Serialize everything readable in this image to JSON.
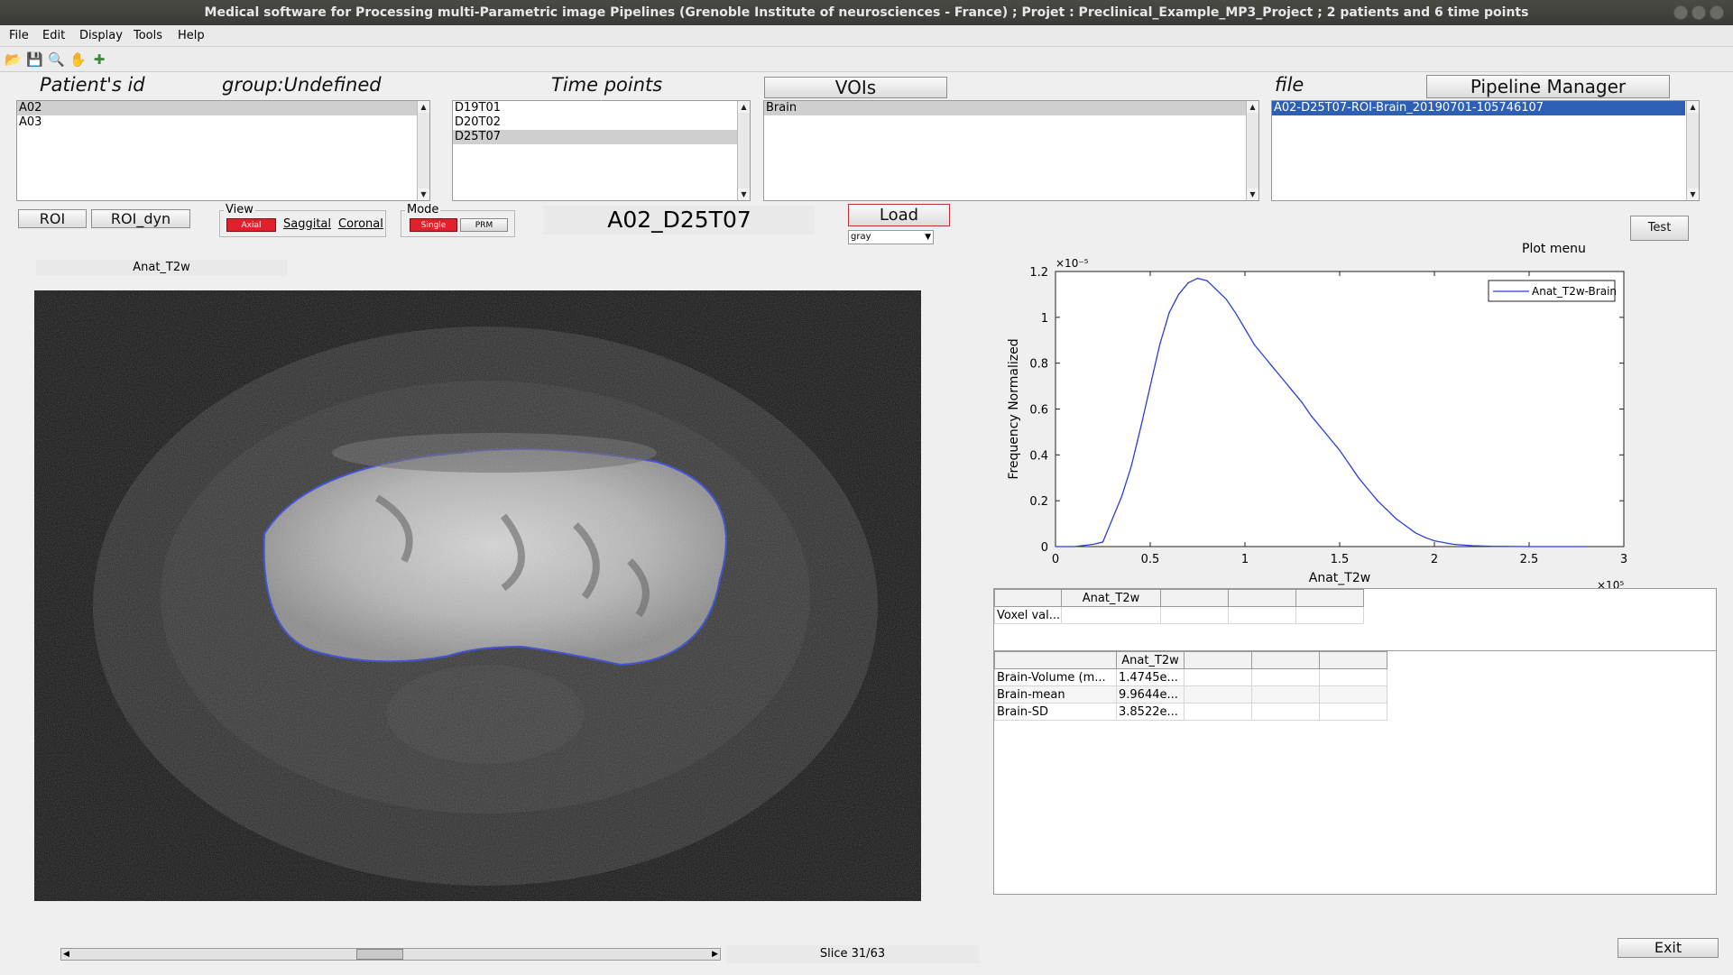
{
  "window": {
    "title": "Medical software for Processing multi-Parametric image Pipelines (Grenoble Institute of neurosciences - France) ; Projet : Preclinical_Example_MP3_Project ; 2 patients and 6 time points"
  },
  "menu": [
    "File",
    "Edit",
    "Display",
    "Tools",
    "Help"
  ],
  "toolbar_icons": [
    "open-folder-icon",
    "save-icon",
    "zoom-icon",
    "pan-hand-icon",
    "data-cursor-icon"
  ],
  "patients": {
    "header": "Patient's id",
    "group": "group:Undefined",
    "items": [
      "A02",
      "A03"
    ],
    "selected": 0
  },
  "timepoints": {
    "header": "Time points",
    "items": [
      "D19T01",
      "D20T02",
      "D25T07"
    ],
    "selected": 2
  },
  "vois": {
    "header": "VOIs",
    "items": [
      "Brain"
    ],
    "selected": 0
  },
  "file": {
    "header": "file",
    "items": [
      "A02-D25T07-ROI-Brain_20190701-105746107"
    ],
    "selected": 0
  },
  "buttons": {
    "pipeline": "Pipeline Manager",
    "roi": "ROI",
    "roi_dyn": "ROI_dyn",
    "load": "Load",
    "test": "Test",
    "exit": "Exit"
  },
  "view": {
    "label": "View",
    "axial": "Axial",
    "saggital": "Saggital",
    "coronal": "Coronal"
  },
  "mode": {
    "label": "Mode",
    "single": "Single",
    "prm": "PRM"
  },
  "current_id": "A02_D25T07",
  "colormap": "gray",
  "image_title": "Anat_T2w",
  "slice": {
    "text": "Slice 31/63",
    "current": 31,
    "total": 63
  },
  "plot_menu": "Plot menu",
  "chart_data": {
    "type": "line",
    "xlabel": "Anat_T2w",
    "ylabel": "Frequency Normalized",
    "x_exponent": "×10⁵",
    "y_exponent": "×10⁻⁵",
    "xlim": [
      0,
      3
    ],
    "ylim": [
      0,
      1.2
    ],
    "x_ticks": [
      "0",
      "0.5",
      "1",
      "1.5",
      "2",
      "2.5",
      "3"
    ],
    "y_ticks": [
      "0",
      "0.2",
      "0.4",
      "0.6",
      "0.8",
      "1",
      "1.2"
    ],
    "legend_position": "top-right",
    "color": "#2b3fd6",
    "series": [
      {
        "name": "Anat_T2w-Brain",
        "x": [
          0.0,
          0.1,
          0.2,
          0.25,
          0.3,
          0.35,
          0.4,
          0.45,
          0.5,
          0.55,
          0.6,
          0.65,
          0.7,
          0.75,
          0.8,
          0.85,
          0.9,
          0.95,
          1.0,
          1.05,
          1.1,
          1.15,
          1.2,
          1.25,
          1.3,
          1.35,
          1.4,
          1.45,
          1.5,
          1.55,
          1.6,
          1.65,
          1.7,
          1.75,
          1.8,
          1.85,
          1.9,
          1.95,
          2.0,
          2.1,
          2.2,
          2.3,
          2.5,
          2.8
        ],
        "y": [
          0.0,
          0.0,
          0.01,
          0.02,
          0.12,
          0.22,
          0.35,
          0.52,
          0.7,
          0.88,
          1.02,
          1.1,
          1.15,
          1.17,
          1.16,
          1.12,
          1.08,
          1.02,
          0.95,
          0.88,
          0.83,
          0.78,
          0.73,
          0.68,
          0.63,
          0.57,
          0.52,
          0.47,
          0.42,
          0.36,
          0.3,
          0.25,
          0.2,
          0.16,
          0.12,
          0.09,
          0.06,
          0.04,
          0.025,
          0.01,
          0.004,
          0.001,
          0.0,
          0.0
        ]
      }
    ]
  },
  "voxel_table": {
    "header": [
      "",
      "Anat_T2w",
      "",
      "",
      ""
    ],
    "rows": [
      [
        "Voxel val...",
        "",
        "",
        "",
        ""
      ]
    ]
  },
  "stats_table": {
    "header": [
      "",
      "Anat_T2w",
      "",
      "",
      ""
    ],
    "rows": [
      [
        "Brain-Volume (m...",
        "1.4745e...",
        "",
        "",
        ""
      ],
      [
        "Brain-mean",
        "9.9644e...",
        "",
        "",
        ""
      ],
      [
        "Brain-SD",
        "3.8522e...",
        "",
        "",
        ""
      ]
    ]
  }
}
